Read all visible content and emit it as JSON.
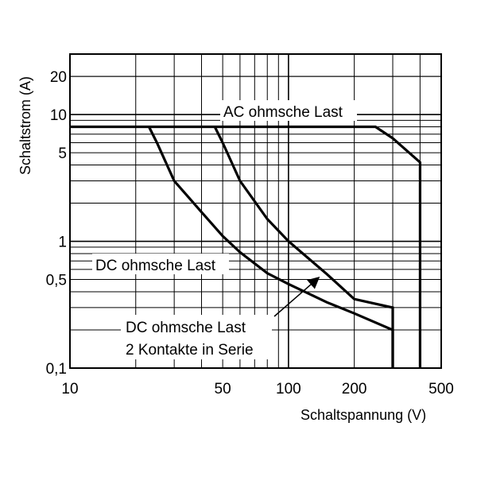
{
  "chart_data": {
    "type": "line",
    "title": "",
    "xlabel": "Schaltspannung (V)",
    "ylabel": "Schaltstrom (A)",
    "xscale": "log",
    "yscale": "log",
    "xlim": [
      10,
      500
    ],
    "ylim": [
      0.1,
      30
    ],
    "grid": true,
    "x_ticks": [
      {
        "value": 10,
        "label": "10"
      },
      {
        "value": 50,
        "label": "50"
      },
      {
        "value": 100,
        "label": "100"
      },
      {
        "value": 200,
        "label": "200"
      },
      {
        "value": 500,
        "label": "500"
      }
    ],
    "y_ticks": [
      {
        "value": 0.1,
        "label": "0,1"
      },
      {
        "value": 0.5,
        "label": "0,5"
      },
      {
        "value": 1,
        "label": "1"
      },
      {
        "value": 5,
        "label": "5"
      },
      {
        "value": 10,
        "label": "10"
      },
      {
        "value": 20,
        "label": "20"
      }
    ],
    "series": [
      {
        "name": "AC ohmsche Last",
        "x": [
          10,
          250,
          300,
          400,
          400
        ],
        "y": [
          8,
          8,
          6.5,
          4.2,
          0.1
        ]
      },
      {
        "name": "DC ohmsche Last",
        "x": [
          46,
          50,
          60,
          80,
          100,
          150,
          200,
          300,
          300
        ],
        "y": [
          8,
          6,
          3,
          1.5,
          1.0,
          0.55,
          0.35,
          0.3,
          0.1
        ]
      },
      {
        "name": "DC ohmsche Last 2 Kontakte in Serie",
        "x": [
          23,
          25,
          30,
          40,
          50,
          60,
          80,
          100,
          150,
          200,
          300,
          300
        ],
        "y": [
          8,
          6,
          3,
          1.7,
          1.1,
          0.82,
          0.56,
          0.46,
          0.33,
          0.27,
          0.2,
          0.1
        ]
      }
    ],
    "annotations": {
      "ac_label": "AC ohmsche Last",
      "dc_label": "DC ohmsche Last",
      "dc2_label_line1": "DC ohmsche Last",
      "dc2_label_line2": "2 Kontakte in Serie"
    }
  }
}
